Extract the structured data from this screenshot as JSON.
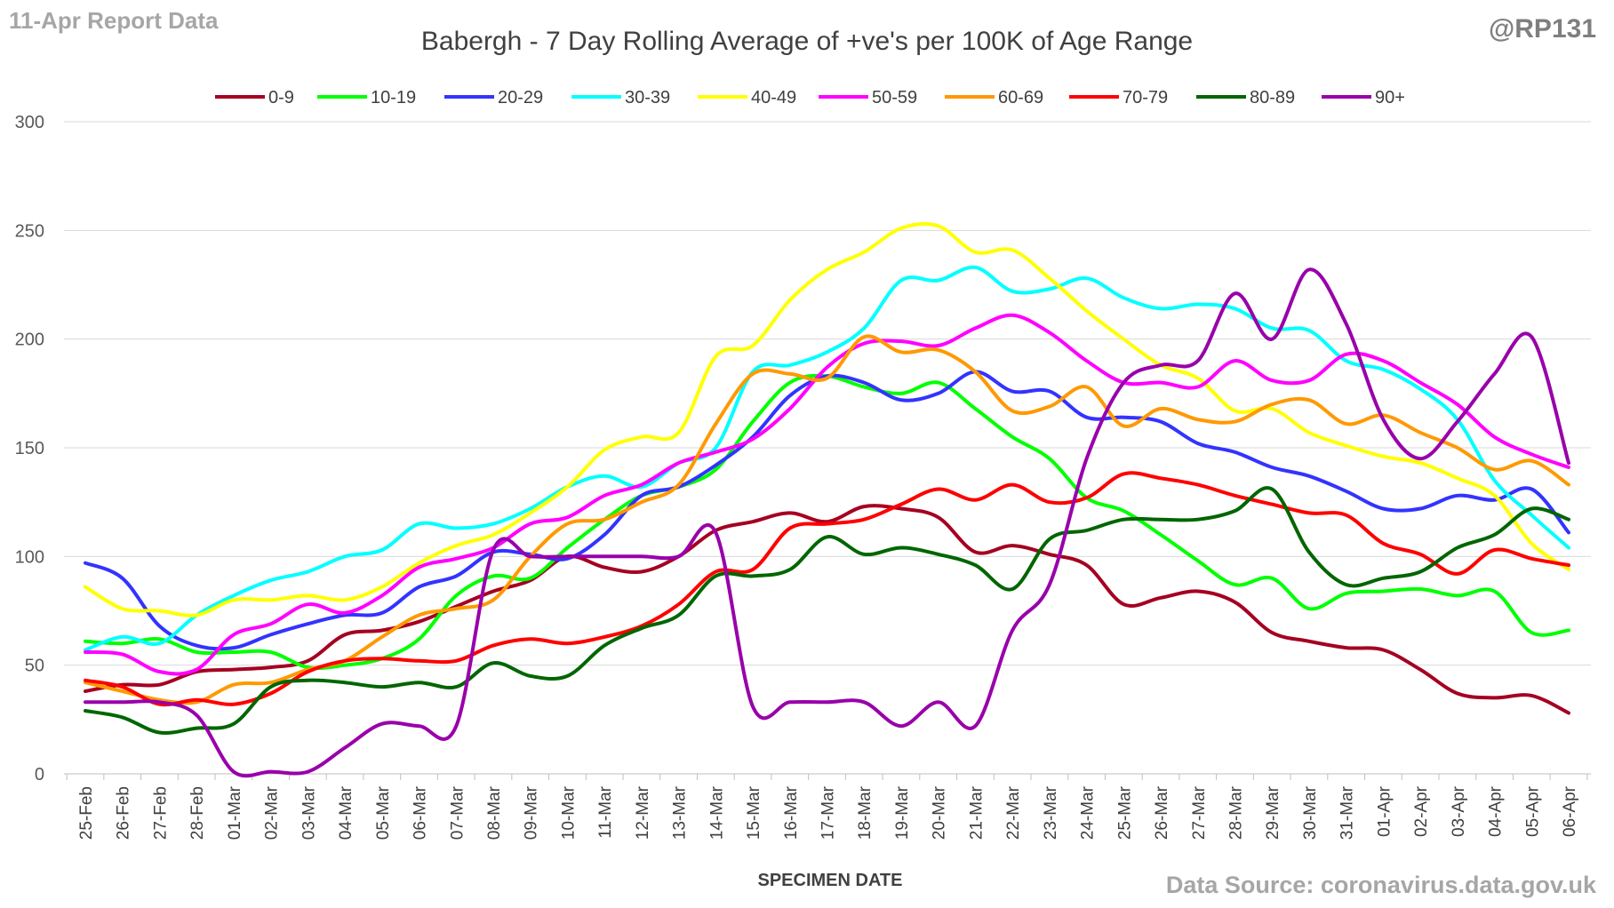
{
  "header": {
    "report_label": "11-Apr Report Data",
    "handle": "@RP131"
  },
  "footer": {
    "source": "Data Source: coronavirus.data.gov.uk"
  },
  "chart_data": {
    "type": "line",
    "title": "Babergh - 7 Day Rolling Average of +ve's per 100K of Age Range",
    "xlabel": "SPECIMEN DATE",
    "ylabel": "",
    "ylim": [
      0,
      300
    ],
    "yticks": [
      0,
      50,
      100,
      150,
      200,
      250,
      300
    ],
    "grid": true,
    "legend_position": "top",
    "categories": [
      "25-Feb",
      "26-Feb",
      "27-Feb",
      "28-Feb",
      "01-Mar",
      "02-Mar",
      "03-Mar",
      "04-Mar",
      "05-Mar",
      "06-Mar",
      "07-Mar",
      "08-Mar",
      "09-Mar",
      "10-Mar",
      "11-Mar",
      "12-Mar",
      "13-Mar",
      "14-Mar",
      "15-Mar",
      "16-Mar",
      "17-Mar",
      "18-Mar",
      "19-Mar",
      "20-Mar",
      "21-Mar",
      "22-Mar",
      "23-Mar",
      "24-Mar",
      "25-Mar",
      "26-Mar",
      "27-Mar",
      "28-Mar",
      "29-Mar",
      "30-Mar",
      "31-Mar",
      "01-Apr",
      "02-Apr",
      "03-Apr",
      "04-Apr",
      "05-Apr",
      "06-Apr"
    ],
    "series": [
      {
        "name": "0-9",
        "color": "#a50021",
        "values": [
          38,
          41,
          41,
          47,
          48,
          49,
          52,
          64,
          66,
          70,
          77,
          84,
          89,
          100,
          95,
          93,
          100,
          112,
          116,
          120,
          116,
          123,
          122,
          118,
          102,
          105,
          101,
          96,
          78,
          81,
          84,
          79,
          65,
          61,
          58,
          57,
          48,
          37,
          35,
          36,
          28
        ]
      },
      {
        "name": "10-19",
        "color": "#00ff00",
        "values": [
          61,
          60,
          62,
          56,
          56,
          56,
          49,
          50,
          53,
          62,
          82,
          91,
          90,
          104,
          117,
          128,
          132,
          140,
          162,
          180,
          183,
          178,
          175,
          180,
          168,
          155,
          145,
          127,
          121,
          110,
          98,
          87,
          90,
          76,
          83,
          84,
          85,
          82,
          84,
          65,
          66
        ]
      },
      {
        "name": "20-29",
        "color": "#3333ff",
        "values": [
          97,
          90,
          68,
          59,
          58,
          64,
          69,
          73,
          74,
          86,
          91,
          102,
          101,
          99,
          110,
          128,
          132,
          142,
          155,
          174,
          183,
          180,
          172,
          175,
          185,
          176,
          176,
          164,
          164,
          162,
          152,
          148,
          141,
          137,
          130,
          122,
          122,
          128,
          126,
          131,
          111
        ]
      },
      {
        "name": "30-39",
        "color": "#00ffff",
        "values": [
          57,
          63,
          60,
          73,
          82,
          89,
          93,
          100,
          103,
          115,
          113,
          115,
          122,
          132,
          137,
          132,
          143,
          150,
          185,
          188,
          194,
          205,
          227,
          227,
          233,
          222,
          223,
          228,
          219,
          214,
          216,
          214,
          205,
          204,
          190,
          186,
          177,
          163,
          135,
          119,
          104
        ]
      },
      {
        "name": "40-49",
        "color": "#ffff00",
        "values": [
          86,
          76,
          75,
          73,
          80,
          80,
          82,
          80,
          86,
          97,
          105,
          110,
          120,
          132,
          149,
          155,
          157,
          192,
          197,
          218,
          232,
          240,
          251,
          252,
          240,
          241,
          228,
          213,
          200,
          188,
          182,
          167,
          168,
          157,
          151,
          146,
          143,
          136,
          128,
          106,
          94
        ]
      },
      {
        "name": "50-59",
        "color": "#ff00ff",
        "values": [
          56,
          55,
          47,
          48,
          64,
          69,
          78,
          74,
          82,
          95,
          99,
          104,
          115,
          118,
          128,
          133,
          143,
          148,
          154,
          168,
          187,
          198,
          199,
          197,
          205,
          211,
          203,
          190,
          180,
          180,
          178,
          190,
          181,
          181,
          193,
          190,
          180,
          170,
          155,
          147,
          141
        ]
      },
      {
        "name": "60-69",
        "color": "#ff9900",
        "values": [
          42,
          38,
          34,
          33,
          41,
          42,
          48,
          52,
          63,
          73,
          76,
          80,
          100,
          115,
          117,
          125,
          133,
          161,
          184,
          184,
          182,
          201,
          194,
          195,
          185,
          167,
          169,
          178,
          160,
          168,
          163,
          162,
          170,
          172,
          161,
          165,
          157,
          150,
          140,
          144,
          133
        ]
      },
      {
        "name": "70-79",
        "color": "#ff0000",
        "values": [
          43,
          40,
          32,
          34,
          32,
          37,
          47,
          52,
          53,
          52,
          52,
          59,
          62,
          60,
          63,
          68,
          78,
          93,
          94,
          113,
          115,
          117,
          124,
          131,
          126,
          133,
          125,
          127,
          138,
          136,
          133,
          128,
          124,
          120,
          119,
          106,
          101,
          92,
          103,
          99,
          96
        ]
      },
      {
        "name": "80-89",
        "color": "#006600",
        "values": [
          29,
          26,
          19,
          21,
          23,
          40,
          43,
          42,
          40,
          42,
          40,
          51,
          45,
          45,
          59,
          67,
          73,
          91,
          91,
          94,
          109,
          101,
          104,
          101,
          96,
          85,
          108,
          112,
          117,
          117,
          117,
          121,
          131,
          102,
          87,
          90,
          93,
          104,
          110,
          122,
          117
        ]
      },
      {
        "name": "90+",
        "color": "#9900aa",
        "values": [
          33,
          33,
          33,
          27,
          1,
          1,
          1,
          12,
          23,
          22,
          22,
          103,
          100,
          100,
          100,
          100,
          100,
          111,
          31,
          33,
          33,
          33,
          22,
          33,
          22,
          66,
          87,
          145,
          180,
          188,
          190,
          221,
          200,
          232,
          207,
          163,
          145,
          162,
          184,
          201,
          143
        ]
      }
    ]
  }
}
